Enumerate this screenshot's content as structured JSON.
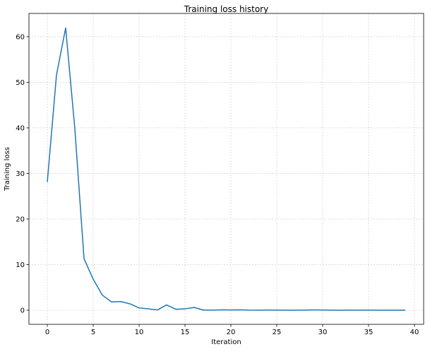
{
  "chart_data": {
    "type": "line",
    "title": "Training loss history",
    "xlabel": "Iteration",
    "ylabel": "Training loss",
    "xlim": [
      -2,
      41
    ],
    "ylim": [
      -3.1,
      65.1
    ],
    "xticks": [
      0,
      5,
      10,
      15,
      20,
      25,
      30,
      35,
      40
    ],
    "yticks": [
      0,
      10,
      20,
      30,
      40,
      50,
      60
    ],
    "grid": true,
    "series": [
      {
        "color": "#1f77b4",
        "x": [
          0,
          1,
          2,
          3,
          4,
          5,
          6,
          7,
          8,
          9,
          10,
          11,
          12,
          13,
          14,
          15,
          16,
          17,
          18,
          19,
          20,
          21,
          22,
          23,
          24,
          25,
          26,
          27,
          28,
          29,
          30,
          31,
          32,
          33,
          34,
          35,
          36,
          37,
          38,
          39
        ],
        "values": [
          28.1,
          51.6,
          61.9,
          39.8,
          11.3,
          6.8,
          3.3,
          1.8,
          1.9,
          1.4,
          0.5,
          0.3,
          0.05,
          1.15,
          0.2,
          0.3,
          0.6,
          0.02,
          0.02,
          0.07,
          0.05,
          0.08,
          0.02,
          0.01,
          0.03,
          0.02,
          0.01,
          0.01,
          0.02,
          0.05,
          0.04,
          0.01,
          0.01,
          0.02,
          0.01,
          0.02,
          0.01,
          0.01,
          0.01,
          0.01
        ]
      }
    ]
  }
}
